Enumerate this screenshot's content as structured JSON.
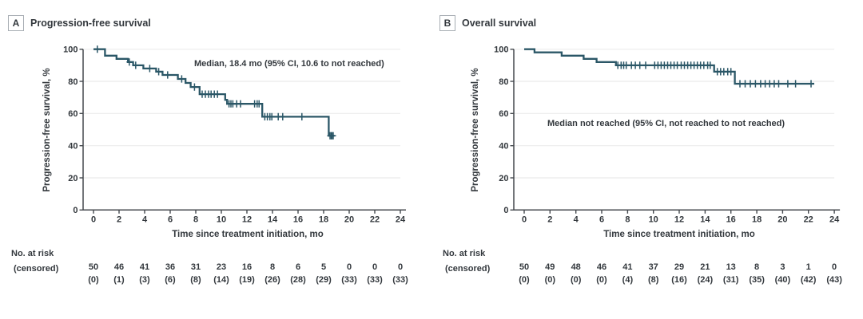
{
  "figure": {
    "panels": [
      {
        "label": "A",
        "title": "Progression-free survival",
        "annotation": "Median, 18.4 mo (95% CI, 10.6 to not reached)",
        "y_axis_label": "Progression-free survival, %",
        "x_axis_label": "Time since treatment initiation, mo",
        "risk_label_line1": "No. at risk",
        "risk_label_line2": "(censored)"
      },
      {
        "label": "B",
        "title": "Overall survival",
        "annotation": "Median not reached (95% CI, not reached to not reached)",
        "y_axis_label": "Progression-free survival, %",
        "x_axis_label": "Time since treatment initiation, mo",
        "risk_label_line1": "No. at risk",
        "risk_label_line2": "(censored)"
      }
    ]
  },
  "colors": {
    "curve": "#2b5767",
    "text": "#33383d",
    "axis": "#45494e",
    "grid": "#ebebeb",
    "panel_box_border": "#a7adb3"
  },
  "chart_data": [
    {
      "type": "line",
      "subtype": "kaplan-meier-step",
      "panel": "A",
      "title": "Progression-free survival",
      "xlabel": "Time since treatment initiation, mo",
      "ylabel": "Progression-free survival, %",
      "xlim": [
        0,
        24
      ],
      "ylim": [
        0,
        100
      ],
      "xticks": [
        0,
        2,
        4,
        6,
        8,
        10,
        12,
        14,
        16,
        18,
        20,
        22,
        24
      ],
      "yticks": [
        0,
        20,
        40,
        60,
        80,
        100
      ],
      "grid": "horizontal-light",
      "legend": "none",
      "annotation": "Median, 18.4 mo (95% CI, 10.6 to not reached)",
      "median_months": "18.4",
      "series": [
        {
          "name": "Progression-free survival",
          "step_points": [
            [
              0,
              100
            ],
            [
              0.9,
              96
            ],
            [
              1.8,
              94
            ],
            [
              2.7,
              92
            ],
            [
              3.1,
              90
            ],
            [
              3.9,
              88
            ],
            [
              4.9,
              86
            ],
            [
              5.4,
              84
            ],
            [
              6.6,
              81.5
            ],
            [
              7.2,
              79
            ],
            [
              7.6,
              76.5
            ],
            [
              8.3,
              72
            ],
            [
              10.3,
              68.5
            ],
            [
              10.45,
              66
            ],
            [
              13.2,
              58
            ],
            [
              18.4,
              46.2
            ]
          ],
          "end_time": 18.85,
          "censor_marks": [
            [
              0.3,
              100
            ],
            [
              2.8,
              92
            ],
            [
              3.3,
              90
            ],
            [
              4.4,
              88
            ],
            [
              5.1,
              86
            ],
            [
              5.8,
              84
            ],
            [
              6.9,
              81.5
            ],
            [
              7.9,
              76.5
            ],
            [
              8.5,
              72
            ],
            [
              8.75,
              72
            ],
            [
              9.0,
              72
            ],
            [
              9.2,
              72
            ],
            [
              9.45,
              72
            ],
            [
              9.7,
              72
            ],
            [
              10.6,
              66
            ],
            [
              10.75,
              66
            ],
            [
              10.9,
              66
            ],
            [
              11.2,
              66
            ],
            [
              11.5,
              66
            ],
            [
              12.6,
              66
            ],
            [
              12.8,
              66
            ],
            [
              12.95,
              66
            ],
            [
              13.4,
              58
            ],
            [
              13.6,
              58
            ],
            [
              13.8,
              58
            ],
            [
              13.95,
              58
            ],
            [
              14.45,
              58
            ],
            [
              14.8,
              58
            ],
            [
              16.3,
              58
            ],
            [
              18.5,
              46.2
            ],
            [
              18.6,
              46.2
            ],
            [
              18.65,
              46.2
            ],
            [
              18.75,
              46.2
            ]
          ]
        }
      ],
      "at_risk": {
        "times": [
          0,
          2,
          4,
          6,
          8,
          10,
          12,
          14,
          16,
          18,
          20,
          22,
          24
        ],
        "n": [
          50,
          46,
          41,
          36,
          31,
          23,
          16,
          8,
          6,
          5,
          0,
          0,
          0
        ],
        "censored_labels": [
          "(0)",
          "(1)",
          "(3)",
          "(6)",
          "(8)",
          "(14)",
          "(19)",
          "(26)",
          "(28)",
          "(29)",
          "(33)",
          "(33)",
          "(33)"
        ]
      }
    },
    {
      "type": "line",
      "subtype": "kaplan-meier-step",
      "panel": "B",
      "title": "Overall survival",
      "xlabel": "Time since treatment initiation, mo",
      "ylabel": "Progression-free survival, %",
      "xlim": [
        0,
        24
      ],
      "ylim": [
        0,
        100
      ],
      "xticks": [
        0,
        2,
        4,
        6,
        8,
        10,
        12,
        14,
        16,
        18,
        20,
        22,
        24
      ],
      "yticks": [
        0,
        20,
        40,
        60,
        80,
        100
      ],
      "grid": "horizontal-light",
      "legend": "none",
      "annotation": "Median not reached (95% CI, not reached to not reached)",
      "median_months": "not reached",
      "series": [
        {
          "name": "Overall survival",
          "step_points": [
            [
              0,
              100
            ],
            [
              0.8,
              98
            ],
            [
              2.9,
              96
            ],
            [
              4.6,
              94
            ],
            [
              5.6,
              92
            ],
            [
              7.1,
              90
            ],
            [
              14.7,
              86
            ],
            [
              16.3,
              78.5
            ]
          ],
          "end_time": 22.45,
          "censor_marks": [
            [
              7.25,
              90
            ],
            [
              7.5,
              90
            ],
            [
              7.7,
              90
            ],
            [
              7.9,
              90
            ],
            [
              8.3,
              90
            ],
            [
              8.6,
              90
            ],
            [
              8.95,
              90
            ],
            [
              9.4,
              90
            ],
            [
              10.1,
              90
            ],
            [
              10.35,
              90
            ],
            [
              10.6,
              90
            ],
            [
              10.85,
              90
            ],
            [
              11.1,
              90
            ],
            [
              11.35,
              90
            ],
            [
              11.6,
              90
            ],
            [
              11.85,
              90
            ],
            [
              12.15,
              90
            ],
            [
              12.4,
              90
            ],
            [
              12.65,
              90
            ],
            [
              12.9,
              90
            ],
            [
              13.15,
              90
            ],
            [
              13.4,
              90
            ],
            [
              13.65,
              90
            ],
            [
              13.9,
              90
            ],
            [
              14.2,
              90
            ],
            [
              14.4,
              90
            ],
            [
              14.95,
              86
            ],
            [
              15.2,
              86
            ],
            [
              15.45,
              86
            ],
            [
              15.75,
              86
            ],
            [
              16.0,
              86
            ],
            [
              16.7,
              78.5
            ],
            [
              17.1,
              78.5
            ],
            [
              17.5,
              78.5
            ],
            [
              17.9,
              78.5
            ],
            [
              18.3,
              78.5
            ],
            [
              18.65,
              78.5
            ],
            [
              19.0,
              78.5
            ],
            [
              19.35,
              78.5
            ],
            [
              19.7,
              78.5
            ],
            [
              20.4,
              78.5
            ],
            [
              21.0,
              78.5
            ],
            [
              22.2,
              78.5
            ]
          ]
        }
      ],
      "at_risk": {
        "times": [
          0,
          2,
          4,
          6,
          8,
          10,
          12,
          14,
          16,
          18,
          20,
          22,
          24
        ],
        "n": [
          50,
          49,
          48,
          46,
          41,
          37,
          29,
          21,
          13,
          8,
          3,
          1,
          0
        ],
        "censored_labels": [
          "(0)",
          "(0)",
          "(0)",
          "(0)",
          "(4)",
          "(8)",
          "(16)",
          "(24)",
          "(31)",
          "(35)",
          "(40)",
          "(42)",
          "(43)"
        ]
      }
    }
  ]
}
